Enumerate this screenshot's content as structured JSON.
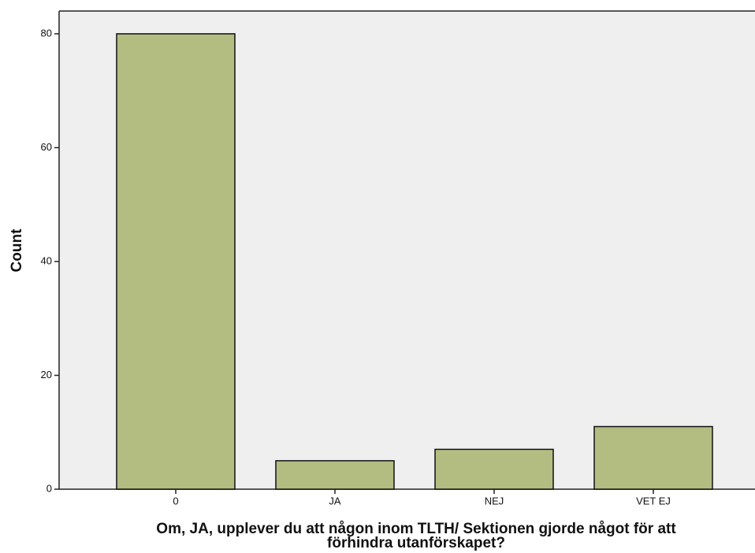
{
  "chart_data": {
    "type": "bar",
    "ylabel": "Count",
    "xlabel": [
      "Om, JA, upplever du att någon inom TLTH/ Sektionen gjorde något för att",
      "förhindra utanförskapet?"
    ],
    "categories": [
      "0",
      "JA",
      "NEJ",
      "VET EJ"
    ],
    "values": [
      80,
      5,
      7,
      11
    ],
    "color": "#b3bd82",
    "ylim": [
      0,
      84
    ],
    "yticks": [
      0,
      20,
      40,
      60,
      80
    ],
    "grid": false
  }
}
